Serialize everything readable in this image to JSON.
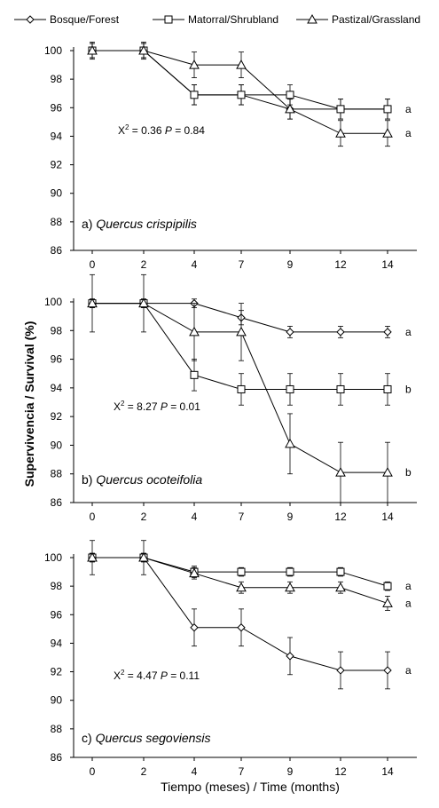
{
  "legend": {
    "items": [
      {
        "label": "Bosque/Forest",
        "marker": "diamond-icon"
      },
      {
        "label": "Matorral/Shrubland",
        "marker": "square-icon"
      },
      {
        "label": "Pastizal/Grassland",
        "marker": "triangle-icon"
      }
    ]
  },
  "ylabel": "Supervivencia / Survival (%)",
  "xlabel": "Tiempo (meses) / Time (months)",
  "chart_data": [
    {
      "type": "line",
      "panel_label": "a)",
      "species": "Quercus crispipilis",
      "stat_text": {
        "prefix": "X",
        "sup": "2",
        "mid": " = 0.36 ",
        "p": "P",
        "end": " = 0.84"
      },
      "categories": [
        "0",
        "2",
        "4",
        "7",
        "9",
        "12",
        "14"
      ],
      "yticks": [
        "100",
        "98",
        "96",
        "94",
        "92",
        "90",
        "88",
        "86"
      ],
      "ylim": [
        86,
        100
      ],
      "series": [
        {
          "name": "Bosque/Forest",
          "marker": "diamond",
          "values": [
            100,
            100,
            96.9,
            96.9,
            95.9,
            95.9,
            95.9
          ],
          "err": [
            0.6,
            0.6,
            0.7,
            0.7,
            0.7,
            0.7,
            0.7
          ]
        },
        {
          "name": "Matorral/Shrubland",
          "marker": "square",
          "values": [
            100,
            100,
            96.9,
            96.9,
            96.9,
            95.9,
            95.9
          ],
          "err": [
            0.5,
            0.5,
            0.7,
            0.7,
            0.7,
            0.7,
            0.7
          ]
        },
        {
          "name": "Pastizal/Grassland",
          "marker": "triangle",
          "values": [
            100,
            100,
            99.0,
            99.0,
            95.9,
            94.2,
            94.2
          ],
          "err": [
            0.5,
            0.5,
            0.9,
            0.9,
            0.7,
            0.9,
            0.9
          ]
        }
      ],
      "letters": [
        {
          "text": "a",
          "y": 95.9
        },
        {
          "text": "a",
          "y": 94.2
        }
      ]
    },
    {
      "type": "line",
      "panel_label": "b)",
      "species": "Quercus ocoteifolia",
      "stat_text": {
        "prefix": "X",
        "sup": "2",
        "mid": " = 8.27 ",
        "p": "P",
        "end": " = 0.01"
      },
      "categories": [
        "0",
        "2",
        "4",
        "7",
        "9",
        "12",
        "14"
      ],
      "yticks": [
        "100",
        "98",
        "96",
        "94",
        "92",
        "90",
        "88",
        "86"
      ],
      "ylim": [
        86,
        100
      ],
      "series": [
        {
          "name": "Bosque/Forest",
          "marker": "diamond",
          "values": [
            99.9,
            99.9,
            99.9,
            98.9,
            97.9,
            97.9,
            97.9
          ],
          "err": [
            0.3,
            0.3,
            0.3,
            0.5,
            0.4,
            0.4,
            0.4
          ]
        },
        {
          "name": "Matorral/Shrubland",
          "marker": "square",
          "values": [
            99.9,
            99.9,
            94.9,
            93.9,
            93.9,
            93.9,
            93.9
          ],
          "err": [
            0.3,
            0.3,
            1.1,
            1.1,
            1.1,
            1.1,
            1.1
          ]
        },
        {
          "name": "Pastizal/Grassland",
          "marker": "triangle",
          "values": [
            99.9,
            99.9,
            97.9,
            97.9,
            90.1,
            88.1,
            88.1
          ],
          "err": [
            2.0,
            2.0,
            2.0,
            2.0,
            2.1,
            2.1,
            2.1
          ]
        }
      ],
      "letters": [
        {
          "text": "a",
          "y": 97.9
        },
        {
          "text": "b",
          "y": 93.9
        },
        {
          "text": "b",
          "y": 88.1
        }
      ]
    },
    {
      "type": "line",
      "panel_label": "c)",
      "species": "Quercus segoviensis",
      "stat_text": {
        "prefix": "X",
        "sup": "2",
        "mid": " = 4.47 ",
        "p": "P",
        "end": " = 0.11"
      },
      "categories": [
        "0",
        "2",
        "4",
        "7",
        "9",
        "12",
        "14"
      ],
      "yticks": [
        "100",
        "98",
        "96",
        "94",
        "92",
        "90",
        "88",
        "86"
      ],
      "ylim": [
        86,
        100
      ],
      "series": [
        {
          "name": "Bosque/Forest",
          "marker": "diamond",
          "values": [
            100,
            100,
            95.1,
            95.1,
            93.1,
            92.1,
            92.1
          ],
          "err": [
            1.2,
            1.2,
            1.3,
            1.3,
            1.3,
            1.3,
            1.3
          ]
        },
        {
          "name": "Matorral/Shrubland",
          "marker": "square",
          "values": [
            100,
            100,
            99.0,
            99.0,
            99.0,
            99.0,
            98.0
          ],
          "err": [
            0.3,
            0.3,
            0.4,
            0.3,
            0.3,
            0.3,
            0.3
          ]
        },
        {
          "name": "Pastizal/Grassland",
          "marker": "triangle",
          "values": [
            100,
            100,
            98.9,
            97.9,
            97.9,
            97.9,
            96.8
          ],
          "err": [
            0.3,
            0.3,
            0.4,
            0.4,
            0.4,
            0.4,
            0.5
          ]
        }
      ],
      "letters": [
        {
          "text": "a",
          "y": 98.0
        },
        {
          "text": "a",
          "y": 96.8
        },
        {
          "text": "a",
          "y": 92.1
        }
      ]
    }
  ]
}
